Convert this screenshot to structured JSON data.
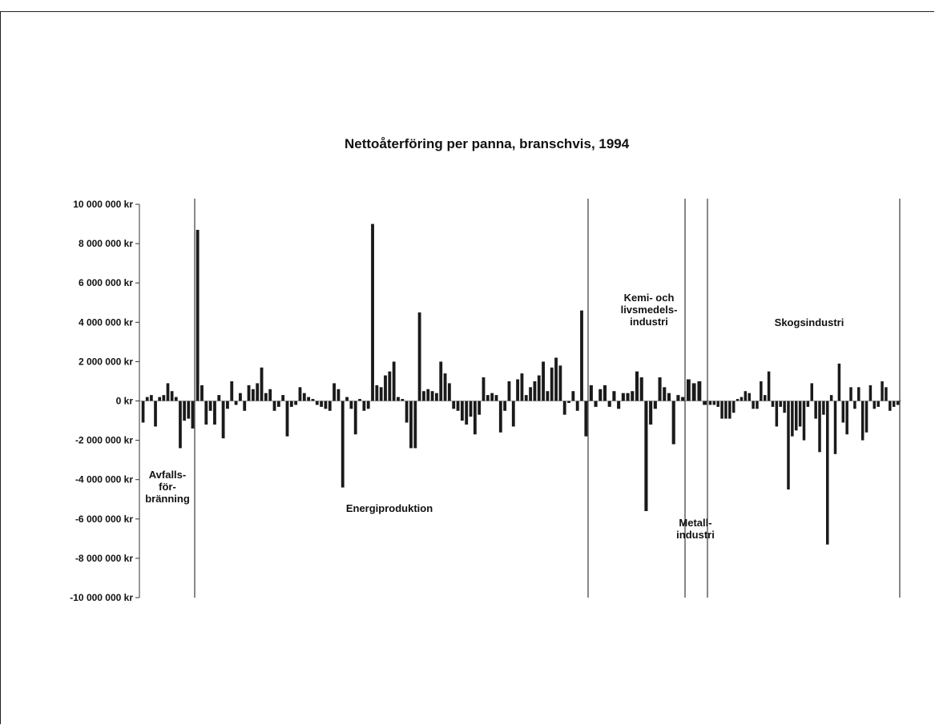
{
  "chart_data": {
    "type": "bar",
    "title": "Nettoåterföring per panna, branschvis, 1994",
    "xlabel": "",
    "ylabel": "",
    "ylim": [
      -10000000,
      10000000
    ],
    "y_ticks": [
      10000000,
      8000000,
      6000000,
      4000000,
      2000000,
      0,
      -2000000,
      -4000000,
      -6000000,
      -8000000,
      -10000000
    ],
    "y_tick_labels": [
      "10 000 000 kr",
      "8 000 000 kr",
      "6 000 000 kr",
      "4 000 000 kr",
      "2 000 000 kr",
      "0 kr",
      "-2 000 000 kr",
      "-4 000 000 kr",
      "-6 000 000 kr",
      "-8 000 000 kr",
      "-10 000 000 kr"
    ],
    "grid": false,
    "legend": "none",
    "bar_color": "#1a1a1a",
    "segments": [
      {
        "label_lines": [
          "Avfalls-",
          "för-",
          "bränning"
        ],
        "values": [
          -1100000,
          200000,
          300000,
          -1300000,
          200000,
          300000,
          900000,
          500000,
          200000,
          -2400000,
          -1000000,
          -900000,
          -1400000
        ]
      },
      {
        "label_lines": [
          "Energiproduktion"
        ],
        "values": [
          8700000,
          800000,
          -1200000,
          -500000,
          -1200000,
          300000,
          -1900000,
          -400000,
          1000000,
          -200000,
          400000,
          -500000,
          800000,
          600000,
          900000,
          1700000,
          400000,
          600000,
          -500000,
          -300000,
          300000,
          -1800000,
          -300000,
          -200000,
          700000,
          400000,
          200000,
          100000,
          -200000,
          -300000,
          -400000,
          -500000,
          900000,
          600000,
          -4400000,
          200000,
          -400000,
          -1700000,
          100000,
          -500000,
          -400000,
          9000000,
          800000,
          700000,
          1300000,
          1500000,
          2000000,
          200000,
          100000,
          -1100000,
          -2400000,
          -2400000,
          4500000,
          500000,
          600000,
          500000,
          400000,
          2000000,
          1400000,
          900000,
          -400000,
          -500000,
          -1000000,
          -1200000,
          -800000,
          -1700000,
          -700000,
          1200000,
          300000,
          400000,
          300000,
          -1600000,
          -500000,
          1000000,
          -1300000,
          1100000,
          1400000,
          300000,
          700000,
          1000000,
          1300000,
          2000000,
          500000,
          1700000,
          2200000,
          1800000,
          -700000,
          -100000,
          500000,
          -500000,
          4600000,
          -1800000
        ]
      },
      {
        "label_lines": [
          "Kemi- och",
          "livsmedels-",
          "industri"
        ],
        "values": [
          800000,
          -300000,
          600000,
          800000,
          -300000,
          500000,
          -400000,
          400000,
          400000,
          500000,
          1500000,
          1200000,
          -5600000,
          -1200000,
          -400000,
          1200000,
          700000,
          400000,
          -2200000,
          300000,
          200000
        ]
      },
      {
        "label_lines": [
          "Metall-",
          "industri"
        ],
        "values": [
          1100000,
          900000,
          1000000,
          -200000
        ]
      },
      {
        "label_lines": [
          "Skogsindustri"
        ],
        "values": [
          -200000,
          -200000,
          -300000,
          -900000,
          -900000,
          -900000,
          -600000,
          100000,
          200000,
          500000,
          400000,
          -400000,
          -400000,
          1000000,
          300000,
          1500000,
          -300000,
          -1300000,
          -300000,
          -600000,
          -4500000,
          -1800000,
          -1500000,
          -1300000,
          -2000000,
          -300000,
          900000,
          -900000,
          -2600000,
          -700000,
          -7300000,
          300000,
          -2700000,
          1900000,
          -1100000,
          -1700000,
          700000,
          -400000,
          700000,
          -2000000,
          -1600000,
          800000,
          -400000,
          -300000,
          1000000,
          700000,
          -500000,
          -300000,
          -200000
        ]
      }
    ]
  }
}
